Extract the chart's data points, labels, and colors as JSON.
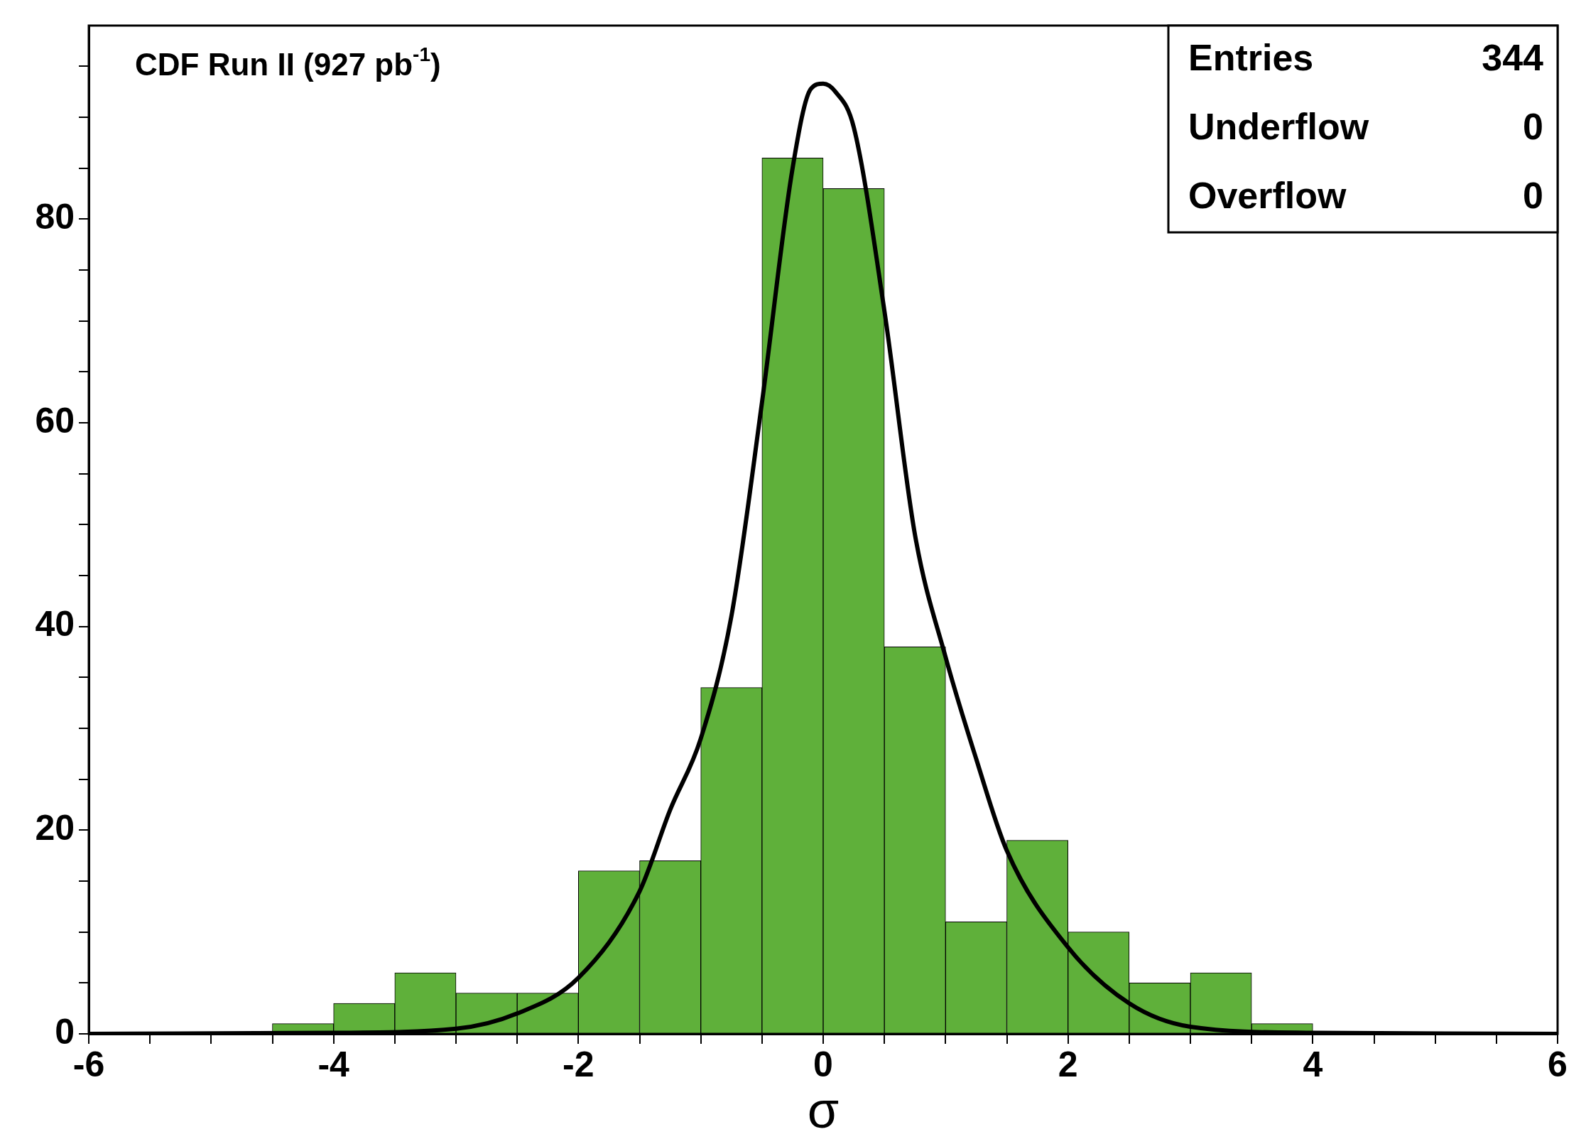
{
  "chart_data": {
    "type": "histogram",
    "title": "CDF Run II (927 pb$^{-1}$)",
    "xlabel": "σ",
    "series": [
      {
        "type": "histogram",
        "color": "#5fb03a",
        "bins": [
          -6,
          -5.5,
          -5,
          -4.5,
          -4,
          -3.5,
          -3,
          -2.5,
          -2,
          -1.5,
          -1,
          -0.5,
          0,
          0.5,
          1,
          1.5,
          2,
          2.5,
          3,
          3.5,
          4,
          4.5,
          5,
          5.5,
          6
        ],
        "values": [
          0,
          0,
          0,
          1,
          3,
          6,
          4,
          4,
          16,
          17,
          34,
          86,
          83,
          38,
          11,
          19,
          10,
          5,
          6,
          1,
          0,
          0,
          0,
          0
        ]
      },
      {
        "type": "line",
        "color": "#000000",
        "x": [
          -6,
          -4,
          -3,
          -2.5,
          -2,
          -1.5,
          -1.25,
          -1,
          -0.75,
          -0.5,
          -0.25,
          -0.1,
          0,
          0.1,
          0.25,
          0.5,
          0.75,
          1,
          1.25,
          1.5,
          2,
          2.5,
          3,
          4,
          6
        ],
        "values": [
          0,
          0.1,
          0.5,
          2,
          5.5,
          14,
          22,
          29,
          41,
          62,
          85,
          92.8,
          93.3,
          92.5,
          89,
          71,
          49,
          37,
          27,
          18,
          8.5,
          3,
          0.7,
          0.1,
          0
        ]
      }
    ],
    "xlim": [
      -6,
      6
    ],
    "xticks": [
      -6,
      {
        "value": -5.5,
        "label": null
      },
      {
        "value": -5,
        "label": null
      },
      {
        "value": -4.5,
        "label": null
      },
      -4,
      {
        "value": -3.5,
        "label": null
      },
      {
        "value": -3,
        "label": null
      },
      {
        "value": -2.5,
        "label": null
      },
      -2,
      {
        "value": -1.5,
        "label": null
      },
      {
        "value": -1,
        "label": null
      },
      {
        "value": -0.5,
        "label": null
      },
      0,
      {
        "value": 0.5,
        "label": null
      },
      {
        "value": 1,
        "label": null
      },
      {
        "value": 1.5,
        "label": null
      },
      2,
      {
        "value": 2.5,
        "label": null
      },
      {
        "value": 3,
        "label": null
      },
      {
        "value": 3.5,
        "label": null
      },
      4,
      {
        "value": 4.5,
        "label": null
      },
      {
        "value": 5,
        "label": null
      },
      {
        "value": 5.5,
        "label": null
      },
      6
    ],
    "ylim": [
      0,
      99
    ],
    "yticks": [
      0,
      {
        "value": 5,
        "label": null
      },
      {
        "value": 10,
        "label": null
      },
      {
        "value": 15,
        "label": null
      },
      20,
      {
        "value": 25,
        "label": null
      },
      {
        "value": 30,
        "label": null
      },
      {
        "value": 35,
        "label": null
      },
      40,
      {
        "value": 45,
        "label": null
      },
      {
        "value": 50,
        "label": null
      },
      {
        "value": 55,
        "label": null
      },
      60,
      {
        "value": 65,
        "label": null
      },
      {
        "value": 70,
        "label": null
      },
      {
        "value": 75,
        "label": null
      },
      80,
      {
        "value": 85,
        "label": null
      },
      {
        "value": 90,
        "label": null
      },
      {
        "value": 95,
        "label": null
      }
    ],
    "annotations": [
      "Entries",
      "344",
      "Underflow",
      "0",
      "Overflow",
      "0"
    ],
    "grid": false,
    "legend": false
  }
}
